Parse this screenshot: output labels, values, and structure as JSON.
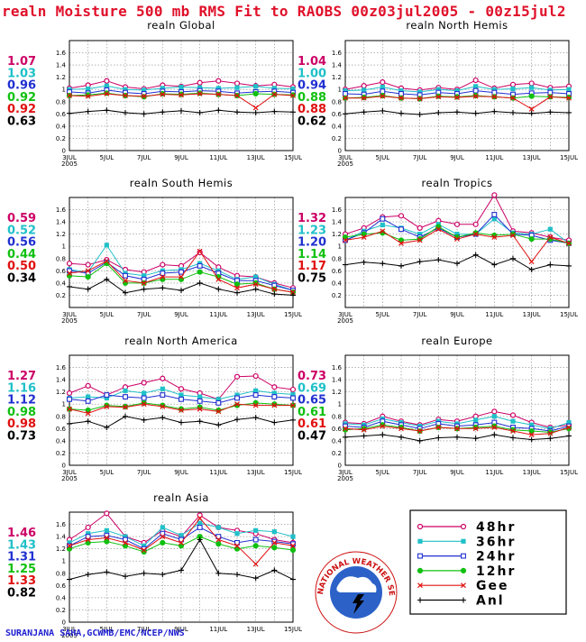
{
  "title": "realn Moisture 500 mb RMS Fit to RAOBS 00z03jul2005 - 00z15jul2",
  "credit": "SURANJANA SAHA,GCWMB/EMC/NCEP/NWS",
  "colors": {
    "title": "#e0102a",
    "credit": "#2020d0",
    "h48": "#cc0066",
    "h36": "#20c0c8",
    "h24": "#2030d0",
    "h12": "#10c010",
    "gee": "#e01010",
    "anl": "#000000"
  },
  "series_names": [
    "48hr",
    "36hr",
    "24hr",
    "12hr",
    "Gee",
    "Anl"
  ],
  "legend_symbols": [
    "open-circle",
    "filled-square",
    "open-square",
    "filled-circle",
    "x-mark",
    "plus"
  ],
  "seal_text": "NATIONAL WEATHER SERVICE",
  "chart_data": [
    {
      "type": "line",
      "title": "realn Global",
      "ylim": [
        0,
        1.8
      ],
      "x": [
        "3JUL",
        "4JUL",
        "5JUL",
        "6JUL",
        "7JUL",
        "8JUL",
        "9JUL",
        "10JUL",
        "11JUL",
        "12JUL",
        "13JUL",
        "14JUL",
        "15JUL"
      ],
      "xticklabels": [
        "3JUL\n2005",
        "5JUL",
        "7JUL",
        "9JUL",
        "11JUL",
        "13JUL",
        "15JUL"
      ],
      "yticklabels": [
        "0",
        "0.2",
        "0.4",
        "0.6",
        "0.8",
        "1",
        "1.2",
        "1.4",
        "1.6"
      ],
      "stats": [
        "1.07",
        "1.03",
        "0.96",
        "0.92",
        "0.92",
        "0.63"
      ],
      "series": [
        {
          "name": "48hr",
          "values": [
            1.02,
            1.07,
            1.14,
            1.04,
            1.01,
            1.07,
            1.05,
            1.11,
            1.14,
            1.1,
            1.06,
            1.08,
            1.04
          ]
        },
        {
          "name": "36hr",
          "values": [
            1.0,
            1.01,
            1.06,
            1.0,
            0.99,
            1.02,
            1.04,
            1.03,
            1.02,
            1.03,
            1.05,
            1.02,
            1.01
          ]
        },
        {
          "name": "24hr",
          "values": [
            0.96,
            0.94,
            0.99,
            0.95,
            0.93,
            0.97,
            0.96,
            0.98,
            0.97,
            0.94,
            0.96,
            0.97,
            0.95
          ]
        },
        {
          "name": "12hr",
          "values": [
            0.9,
            0.91,
            0.94,
            0.9,
            0.88,
            0.93,
            0.92,
            0.94,
            0.92,
            0.9,
            0.93,
            0.92,
            0.91
          ]
        },
        {
          "name": "Gee",
          "values": [
            0.9,
            0.89,
            0.93,
            0.9,
            0.89,
            0.92,
            0.91,
            0.93,
            0.92,
            0.9,
            0.7,
            0.92,
            0.9
          ]
        },
        {
          "name": "Anl",
          "values": [
            0.61,
            0.64,
            0.66,
            0.62,
            0.6,
            0.63,
            0.65,
            0.62,
            0.66,
            0.63,
            0.62,
            0.64,
            0.63
          ]
        }
      ]
    },
    {
      "type": "line",
      "title": "realn North Hemis",
      "ylim": [
        0,
        1.8
      ],
      "x": [
        "3JUL",
        "4JUL",
        "5JUL",
        "6JUL",
        "7JUL",
        "8JUL",
        "9JUL",
        "10JUL",
        "11JUL",
        "12JUL",
        "13JUL",
        "14JUL",
        "15JUL"
      ],
      "xticklabels": [
        "3JUL\n2005",
        "5JUL",
        "7JUL",
        "9JUL",
        "11JUL",
        "13JUL",
        "15JUL"
      ],
      "yticklabels": [
        "0",
        "0.2",
        "0.4",
        "0.6",
        "0.8",
        "1",
        "1.2",
        "1.4",
        "1.6"
      ],
      "stats": [
        "1.04",
        "1.00",
        "0.94",
        "0.88",
        "0.88",
        "0.62"
      ],
      "series": [
        {
          "name": "48hr",
          "values": [
            1.0,
            1.06,
            1.12,
            1.02,
            0.99,
            1.03,
            1.0,
            1.15,
            1.02,
            1.08,
            1.1,
            1.03,
            1.05
          ]
        },
        {
          "name": "36hr",
          "values": [
            0.98,
            0.99,
            1.04,
            0.98,
            0.96,
            1.0,
            0.98,
            1.05,
            1.0,
            1.01,
            1.03,
            0.99,
            1.0
          ]
        },
        {
          "name": "24hr",
          "values": [
            0.93,
            0.92,
            0.97,
            0.93,
            0.91,
            0.95,
            0.93,
            0.98,
            0.95,
            0.92,
            0.94,
            0.95,
            0.93
          ]
        },
        {
          "name": "12hr",
          "values": [
            0.86,
            0.87,
            0.9,
            0.86,
            0.85,
            0.89,
            0.88,
            0.9,
            0.88,
            0.86,
            0.89,
            0.88,
            0.87
          ]
        },
        {
          "name": "Gee",
          "values": [
            0.86,
            0.86,
            0.89,
            0.86,
            0.85,
            0.88,
            0.87,
            0.89,
            0.88,
            0.86,
            0.68,
            0.88,
            0.86
          ]
        },
        {
          "name": "Anl",
          "values": [
            0.6,
            0.63,
            0.65,
            0.61,
            0.59,
            0.62,
            0.63,
            0.61,
            0.64,
            0.62,
            0.61,
            0.63,
            0.62
          ]
        }
      ]
    },
    {
      "type": "line",
      "title": "realn South Hemis",
      "ylim": [
        0,
        1.8
      ],
      "x": [
        "3JUL",
        "4JUL",
        "5JUL",
        "6JUL",
        "7JUL",
        "8JUL",
        "9JUL",
        "10JUL",
        "11JUL",
        "12JUL",
        "13JUL",
        "14JUL",
        "15JUL"
      ],
      "xticklabels": [
        "3JUL\n2005",
        "5JUL",
        "7JUL",
        "9JUL",
        "11JUL",
        "13JUL",
        "15JUL"
      ],
      "yticklabels": [
        "0.2",
        "0.4",
        "0.6",
        "0.8",
        "1",
        "1.2",
        "1.4",
        "1.6"
      ],
      "stats": [
        "0.59",
        "0.52",
        "0.56",
        "0.44",
        "0.50",
        "0.34"
      ],
      "series": [
        {
          "name": "48hr",
          "values": [
            0.72,
            0.7,
            0.78,
            0.62,
            0.58,
            0.7,
            0.68,
            0.9,
            0.66,
            0.52,
            0.5,
            0.4,
            0.32
          ]
        },
        {
          "name": "36hr",
          "values": [
            0.62,
            0.58,
            1.02,
            0.56,
            0.52,
            0.6,
            0.62,
            0.72,
            0.6,
            0.46,
            0.5,
            0.38,
            0.28
          ]
        },
        {
          "name": "24hr",
          "values": [
            0.6,
            0.56,
            0.74,
            0.52,
            0.46,
            0.56,
            0.58,
            0.68,
            0.56,
            0.44,
            0.44,
            0.36,
            0.28
          ]
        },
        {
          "name": "12hr",
          "values": [
            0.52,
            0.5,
            0.72,
            0.4,
            0.4,
            0.46,
            0.46,
            0.58,
            0.5,
            0.38,
            0.4,
            0.3,
            0.25
          ]
        },
        {
          "name": "Gee",
          "values": [
            0.56,
            0.6,
            0.76,
            0.44,
            0.4,
            0.5,
            0.5,
            0.92,
            0.46,
            0.32,
            0.38,
            0.3,
            0.25
          ]
        },
        {
          "name": "Anl",
          "values": [
            0.34,
            0.3,
            0.46,
            0.24,
            0.3,
            0.32,
            0.28,
            0.4,
            0.3,
            0.24,
            0.3,
            0.22,
            0.2
          ]
        }
      ]
    },
    {
      "type": "line",
      "title": "realn Tropics",
      "ylim": [
        0,
        1.8
      ],
      "x": [
        "3JUL",
        "4JUL",
        "5JUL",
        "6JUL",
        "7JUL",
        "8JUL",
        "9JUL",
        "10JUL",
        "11JUL",
        "12JUL",
        "13JUL",
        "14JUL",
        "15JUL"
      ],
      "xticklabels": [
        "3JUL\n2005",
        "5JUL",
        "7JUL",
        "9JUL",
        "11JUL",
        "13JUL",
        "15JUL"
      ],
      "yticklabels": [
        "0.2",
        "0.4",
        "0.6",
        "0.8",
        "1",
        "1.2",
        "1.4",
        "1.6"
      ],
      "stats": [
        "1.32",
        "1.23",
        "1.20",
        "1.14",
        "1.17",
        "0.75"
      ],
      "series": [
        {
          "name": "48hr",
          "values": [
            1.2,
            1.3,
            1.48,
            1.5,
            1.3,
            1.42,
            1.36,
            1.36,
            1.84,
            1.25,
            1.22,
            1.15,
            1.1
          ]
        },
        {
          "name": "36hr",
          "values": [
            1.1,
            1.25,
            1.35,
            1.3,
            1.2,
            1.36,
            1.2,
            1.2,
            1.45,
            1.22,
            1.2,
            1.28,
            1.05
          ]
        },
        {
          "name": "24hr",
          "values": [
            1.1,
            1.22,
            1.45,
            1.28,
            1.15,
            1.3,
            1.15,
            1.2,
            1.52,
            1.2,
            1.18,
            1.1,
            1.05
          ]
        },
        {
          "name": "12hr",
          "values": [
            1.15,
            1.2,
            1.22,
            1.1,
            1.12,
            1.32,
            1.15,
            1.22,
            1.18,
            1.2,
            1.12,
            1.12,
            1.05
          ]
        },
        {
          "name": "Gee",
          "values": [
            1.1,
            1.15,
            1.25,
            1.05,
            1.1,
            1.28,
            1.12,
            1.2,
            1.15,
            1.18,
            0.75,
            1.15,
            1.05
          ]
        },
        {
          "name": "Anl",
          "values": [
            0.7,
            0.74,
            0.72,
            0.68,
            0.75,
            0.78,
            0.72,
            0.86,
            0.7,
            0.8,
            0.62,
            0.7,
            0.68
          ]
        }
      ]
    },
    {
      "type": "line",
      "title": "realn North America",
      "ylim": [
        0,
        1.8
      ],
      "x": [
        "3JUL",
        "4JUL",
        "5JUL",
        "6JUL",
        "7JUL",
        "8JUL",
        "9JUL",
        "10JUL",
        "11JUL",
        "12JUL",
        "13JUL",
        "14JUL",
        "15JUL"
      ],
      "xticklabels": [
        "3JUL\n2005",
        "5JUL",
        "7JUL",
        "9JUL",
        "11JUL",
        "13JUL",
        "15JUL"
      ],
      "yticklabels": [
        "0",
        "0.2",
        "0.4",
        "0.6",
        "0.8",
        "1",
        "1.2",
        "1.4",
        "1.6"
      ],
      "stats": [
        "1.27",
        "1.16",
        "1.12",
        "0.98",
        "0.98",
        "0.73"
      ],
      "series": [
        {
          "name": "48hr",
          "values": [
            1.18,
            1.3,
            1.15,
            1.28,
            1.35,
            1.42,
            1.25,
            1.18,
            1.08,
            1.45,
            1.46,
            1.28,
            1.24
          ]
        },
        {
          "name": "36hr",
          "values": [
            1.1,
            1.12,
            1.1,
            1.22,
            1.18,
            1.25,
            1.15,
            1.12,
            1.08,
            1.15,
            1.22,
            1.18,
            1.16
          ]
        },
        {
          "name": "24hr",
          "values": [
            1.08,
            1.05,
            1.15,
            1.12,
            1.1,
            1.15,
            1.08,
            1.05,
            1.02,
            1.1,
            1.15,
            1.12,
            1.1
          ]
        },
        {
          "name": "12hr",
          "values": [
            0.92,
            0.9,
            0.98,
            0.96,
            1.02,
            0.98,
            0.92,
            0.95,
            0.9,
            0.98,
            1.02,
            1.0,
            0.98
          ]
        },
        {
          "name": "Gee",
          "values": [
            0.92,
            0.85,
            0.96,
            0.95,
            1.0,
            0.96,
            0.9,
            0.92,
            0.88,
            1.0,
            0.98,
            0.98,
            0.98
          ]
        },
        {
          "name": "Anl",
          "values": [
            0.68,
            0.72,
            0.62,
            0.8,
            0.74,
            0.78,
            0.7,
            0.72,
            0.66,
            0.75,
            0.78,
            0.7,
            0.74
          ]
        }
      ]
    },
    {
      "type": "line",
      "title": "realn Europe",
      "ylim": [
        0,
        1.8
      ],
      "x": [
        "3JUL",
        "4JUL",
        "5JUL",
        "6JUL",
        "7JUL",
        "8JUL",
        "9JUL",
        "10JUL",
        "11JUL",
        "12JUL",
        "13JUL",
        "14JUL",
        "15JUL"
      ],
      "xticklabels": [
        "3JUL\n2005",
        "5JUL",
        "7JUL",
        "9JUL",
        "11JUL",
        "13JUL",
        "15JUL"
      ],
      "yticklabels": [
        "0",
        "0.2",
        "0.4",
        "0.6",
        "0.8",
        "1",
        "1.2",
        "1.4",
        "1.6"
      ],
      "stats": [
        "0.73",
        "0.69",
        "0.65",
        "0.61",
        "0.61",
        "0.47"
      ],
      "series": [
        {
          "name": "48hr",
          "values": [
            0.7,
            0.68,
            0.8,
            0.72,
            0.66,
            0.75,
            0.72,
            0.8,
            0.88,
            0.82,
            0.7,
            0.62,
            0.66
          ]
        },
        {
          "name": "36hr",
          "values": [
            0.68,
            0.66,
            0.76,
            0.7,
            0.64,
            0.72,
            0.68,
            0.74,
            0.8,
            0.72,
            0.66,
            0.6,
            0.7
          ]
        },
        {
          "name": "24hr",
          "values": [
            0.64,
            0.62,
            0.72,
            0.66,
            0.6,
            0.68,
            0.64,
            0.66,
            0.7,
            0.62,
            0.6,
            0.56,
            0.64
          ]
        },
        {
          "name": "12hr",
          "values": [
            0.58,
            0.6,
            0.66,
            0.62,
            0.56,
            0.62,
            0.6,
            0.62,
            0.64,
            0.58,
            0.56,
            0.54,
            0.6
          ]
        },
        {
          "name": "Gee",
          "values": [
            0.6,
            0.58,
            0.64,
            0.6,
            0.56,
            0.62,
            0.6,
            0.6,
            0.62,
            0.56,
            0.5,
            0.52,
            0.62
          ]
        },
        {
          "name": "Anl",
          "values": [
            0.46,
            0.48,
            0.5,
            0.46,
            0.4,
            0.45,
            0.46,
            0.44,
            0.5,
            0.45,
            0.42,
            0.44,
            0.48
          ]
        }
      ]
    },
    {
      "type": "line",
      "title": "realn Asia",
      "ylim": [
        0,
        1.8
      ],
      "x": [
        "3JUL",
        "4JUL",
        "5JUL",
        "6JUL",
        "7JUL",
        "8JUL",
        "9JUL",
        "10JUL",
        "11JUL",
        "12JUL",
        "13JUL",
        "14JUL",
        "15JUL"
      ],
      "xticklabels": [
        "3JUL\n2005",
        "5JUL",
        "7JUL",
        "9JUL",
        "11JUL",
        "13JUL",
        "15JUL"
      ],
      "yticklabels": [
        "0",
        "0.2",
        "0.4",
        "0.6",
        "0.8",
        "1",
        "1.2",
        "1.4",
        "1.6"
      ],
      "stats": [
        "1.46",
        "1.43",
        "1.31",
        "1.25",
        "1.33",
        "0.82"
      ],
      "series": [
        {
          "name": "48hr",
          "values": [
            1.35,
            1.55,
            1.78,
            1.4,
            1.3,
            1.5,
            1.4,
            1.75,
            1.55,
            1.5,
            1.45,
            1.35,
            1.3
          ]
        },
        {
          "name": "36hr",
          "values": [
            1.3,
            1.45,
            1.5,
            1.4,
            1.25,
            1.55,
            1.42,
            1.62,
            1.55,
            1.45,
            1.5,
            1.48,
            1.4
          ]
        },
        {
          "name": "24hr",
          "values": [
            1.25,
            1.4,
            1.42,
            1.35,
            1.2,
            1.45,
            1.35,
            1.55,
            1.4,
            1.3,
            1.35,
            1.32,
            1.28
          ]
        },
        {
          "name": "12hr",
          "values": [
            1.2,
            1.3,
            1.32,
            1.25,
            1.15,
            1.3,
            1.25,
            1.4,
            1.28,
            1.2,
            1.25,
            1.22,
            1.18
          ]
        },
        {
          "name": "Gee",
          "values": [
            1.25,
            1.35,
            1.38,
            1.3,
            1.18,
            1.4,
            1.3,
            1.7,
            1.35,
            1.25,
            0.95,
            1.3,
            1.25
          ]
        },
        {
          "name": "Anl",
          "values": [
            0.7,
            0.78,
            0.82,
            0.75,
            0.8,
            0.78,
            0.85,
            1.35,
            0.8,
            0.78,
            0.72,
            0.85,
            0.7
          ]
        }
      ]
    }
  ]
}
